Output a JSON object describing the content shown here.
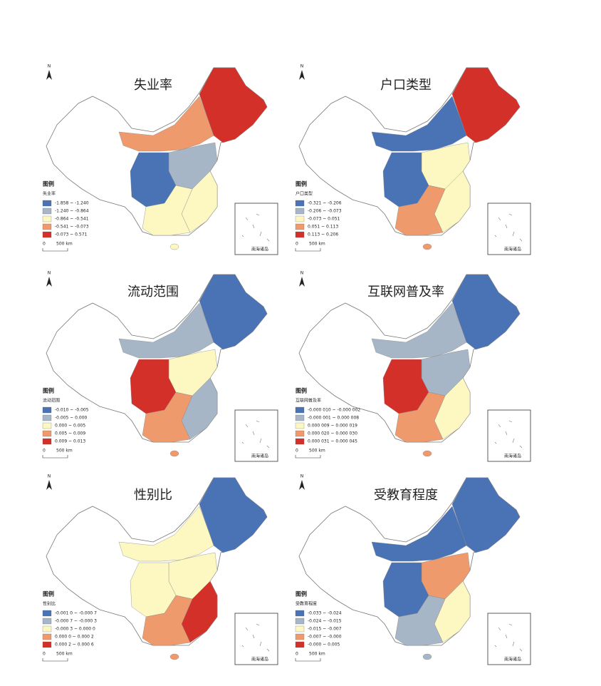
{
  "colors": [
    "#4a73b5",
    "#a6b6c6",
    "#fdf8c2",
    "#ef9a6c",
    "#d4302a"
  ],
  "panels": [
    {
      "title": "失业率",
      "north": "N",
      "legend_heading": "图例",
      "legend_title": "失业率",
      "legend_items": [
        "-1.858 ~ -1.240",
        "-1.240 ~ -0.864",
        "-0.864 ~ -0.541",
        "-0.541 ~ -0.073",
        "-0.073 ~ 0.571"
      ],
      "scale": {
        "zero": "0",
        "distance": "500 km"
      },
      "inset_label": "南海诸岛"
    },
    {
      "title": "户口类型",
      "north": "N",
      "legend_heading": "图例",
      "legend_title": "户口类型",
      "legend_items": [
        "-0.321 ~ -0.206",
        "-0.206 ~ -0.073",
        "-0.073 ~ 0.051",
        "0.051 ~ 0.113",
        "0.113 ~ 0.206"
      ],
      "scale": {
        "zero": "0",
        "distance": "500 km"
      },
      "inset_label": "南海诸岛"
    },
    {
      "title": "流动范围",
      "north": "N",
      "legend_heading": "图例",
      "legend_title": "流动范围",
      "legend_items": [
        "-0.010 ~ -0.005",
        "-0.005 ~ 0.000",
        "0.000 ~ 0.005",
        "0.005 ~ 0.009",
        "0.009 ~ 0.013"
      ],
      "scale": {
        "zero": "0",
        "distance": "500 km"
      },
      "inset_label": "南海诸岛"
    },
    {
      "title": "互联网普及率",
      "north": "N",
      "legend_heading": "图例",
      "legend_title": "互联网普及率",
      "legend_items": [
        "-0.000 010 ~ -0.000 002",
        "-0.000 001 ~ 0.000 008",
        "0.000 009 ~ 0.000 019",
        "0.000 020 ~ 0.000 030",
        "0.000 031 ~ 0.000 045"
      ],
      "scale": {
        "zero": "0",
        "distance": "500 km"
      },
      "inset_label": "南海诸岛"
    },
    {
      "title": "性别比",
      "north": "N",
      "legend_heading": "图例",
      "legend_title": "性别比",
      "legend_items": [
        "-0.001 0 ~ -0.000 7",
        "-0.000 7 ~ -0.000 3",
        "-0.000 3 ~ 0.000 0",
        "0.000 0 ~ 0.000 2",
        "0.000 2 ~ 0.000 6"
      ],
      "scale": {
        "zero": "0",
        "distance": "500 km"
      },
      "inset_label": "南海诸岛"
    },
    {
      "title": "受教育程度",
      "north": "N",
      "legend_heading": "图例",
      "legend_title": "受教育程度",
      "legend_items": [
        "-0.033 ~ -0.024",
        "-0.024 ~ -0.015",
        "-0.015 ~ -0.007",
        "-0.007 ~ -0.000",
        "-0.000 ~ 0.005"
      ],
      "scale": {
        "zero": "0",
        "distance": "500 km"
      },
      "inset_label": "南海诸岛"
    }
  ]
}
